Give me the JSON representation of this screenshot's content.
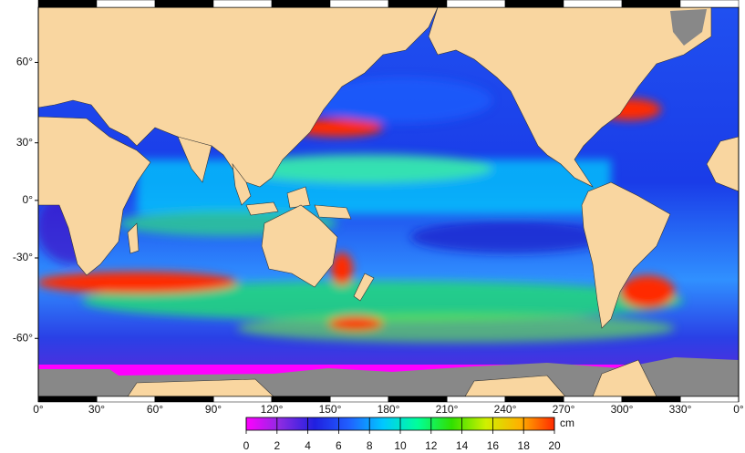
{
  "map": {
    "lon_range": [
      0,
      360
    ],
    "lat_range": [
      -72.5,
      72
    ],
    "lon_ticks": [
      {
        "value": 0,
        "label": "0°"
      },
      {
        "value": 30,
        "label": "30°"
      },
      {
        "value": 60,
        "label": "60°"
      },
      {
        "value": 90,
        "label": "90°"
      },
      {
        "value": 120,
        "label": "120°"
      },
      {
        "value": 150,
        "label": "150°"
      },
      {
        "value": 180,
        "label": "180°"
      },
      {
        "value": 210,
        "label": "210°"
      },
      {
        "value": 240,
        "label": "240°"
      },
      {
        "value": 270,
        "label": "270°"
      },
      {
        "value": 300,
        "label": "300°"
      },
      {
        "value": 330,
        "label": "330°"
      },
      {
        "value": 360,
        "label": "0°"
      }
    ],
    "lat_ticks": [
      {
        "value": 60,
        "label": "60°"
      },
      {
        "value": 30,
        "label": "30°"
      },
      {
        "value": 0,
        "label": "0°"
      },
      {
        "value": -30,
        "label": "-30°"
      },
      {
        "value": -60,
        "label": "-60°"
      }
    ]
  },
  "colorbar": {
    "range": [
      0,
      20
    ],
    "ticks": [
      0,
      2,
      4,
      6,
      8,
      10,
      12,
      14,
      16,
      18,
      20
    ],
    "unit": "cm",
    "colors": [
      "#ff00ff",
      "#8a2be2",
      "#2020e0",
      "#2060ff",
      "#00c8ff",
      "#00ff9a",
      "#30e000",
      "#d0f000",
      "#ffb000",
      "#ff2a00"
    ]
  }
}
